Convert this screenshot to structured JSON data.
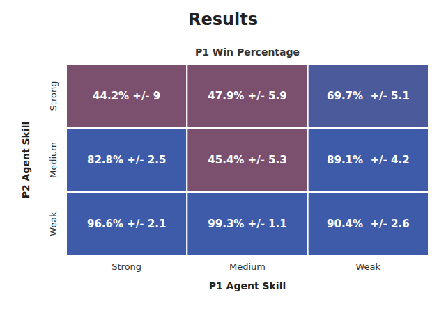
{
  "chart_data": {
    "type": "heatmap",
    "title": "Results",
    "subtitle": "P1 Win Percentage",
    "x_label": "P1 Agent Skill",
    "y_label": "P2 Agent Skill",
    "categories": [
      "Strong",
      "Medium",
      "Weak"
    ],
    "data_labels": true,
    "series": [
      {
        "name": "Strong",
        "values": [
          44.2,
          47.9,
          69.7
        ],
        "errors": [
          9,
          5.9,
          5.1
        ],
        "value_labels": [
          "44.2% +/- 9",
          "47.9% +/- 5.9",
          "69.7%  +/- 5.1"
        ],
        "colors": [
          "#7B4F6E",
          "#7B4F6E",
          "#4A5A9A"
        ]
      },
      {
        "name": "Medium",
        "values": [
          82.8,
          45.4,
          89.1
        ],
        "errors": [
          2.5,
          5.3,
          4.2
        ],
        "value_labels": [
          "82.8% +/- 2.5",
          "45.4% +/- 5.3",
          "89.1%  +/- 4.2"
        ],
        "colors": [
          "#3D5BA8",
          "#7B4F6E",
          "#3D5BA8"
        ]
      },
      {
        "name": "Weak",
        "values": [
          96.6,
          99.3,
          90.4
        ],
        "errors": [
          2.1,
          1.1,
          2.6
        ],
        "value_labels": [
          "96.6% +/- 2.1",
          "99.3% +/- 1.1",
          "90.4%  +/- 2.6"
        ],
        "colors": [
          "#3D5BA8",
          "#3D5BA8",
          "#3D5BA8"
        ]
      }
    ]
  }
}
